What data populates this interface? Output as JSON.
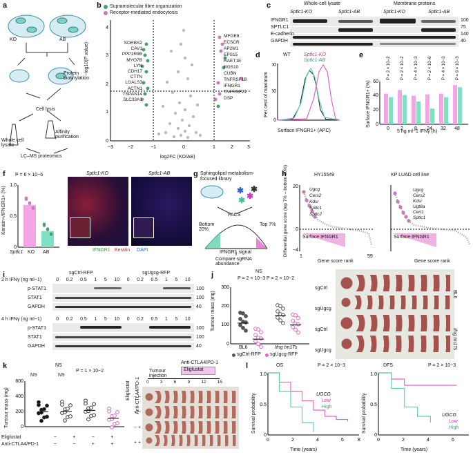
{
  "panels": {
    "a": {
      "label": "a",
      "ko": "KO",
      "ab": "AB",
      "protein_biotinylation": "Protein biotinylation",
      "cell_lysis": "Cell lysis",
      "whole_cell_lysate": "Whole cell lysate",
      "affinity_purification": "Affinity purification",
      "lcms": "LC–MS proteomics"
    },
    "b": {
      "label": "b",
      "legend_fibre": "Supramolecular fibre organization",
      "legend_endo": "Receptor-mediated endocytosis",
      "ylabel": "−log10(P value)",
      "xlabel": "log2FC (KO/AB)",
      "left_genes": [
        "SORBS2",
        "CAV1",
        "PPP1R9B",
        "MYO7B",
        "LYN",
        "CDH17",
        "CTTN",
        "LGALS3",
        "ACTN1",
        "TSPAN14",
        "SLC33A1"
      ],
      "right_genes": [
        "MFGE8",
        "ECSCR",
        "AP2M1",
        "EPS15",
        "RAET1E",
        "RGS10",
        "CUBN",
        "TNFRSF1B",
        "IFNGR1",
        "TNFRSF21",
        "DSP"
      ]
    },
    "c": {
      "label": "c",
      "hdr_wcl": "Whole-cell lysate",
      "hdr_mem": "Membrane proteins",
      "sub_ko": "Sptlc1-KO",
      "sub_ab": "Sptlc1-AB",
      "rows": [
        "IFNGR1",
        "SPTLC1",
        "E-cadherin",
        "GAPDH"
      ],
      "kda": [
        "100",
        "75",
        "140",
        "40"
      ]
    },
    "d": {
      "label": "d",
      "legend_wt": "WT",
      "legend_ko": "Sptlc1-KO",
      "legend_ab": "Sptlc1-AB",
      "ylabel": "Per cent of maximum",
      "xlabel": "Surface IFNGR1+ (APC)"
    },
    "e": {
      "label": "e",
      "ylabel": "Surface IFNGR1+ (%)",
      "xlabel": "5 ng ml−1 IFNγ (h)",
      "pvals": [
        "P = 2 × 10−2",
        "P = 2 × 10−2",
        "P = 4 × 10−3",
        "P = 2 × 10−6",
        "P = 4 × 10−3",
        "P = 9 × 10−3"
      ]
    },
    "f": {
      "label": "f",
      "p": "P = 6 × 10−6",
      "ylabel": "Keratin+/IFNGR1+ (%)",
      "xcat": [
        "KO",
        "AB"
      ],
      "xgene": "Sptlc1",
      "img1": "Sptlc1-KO",
      "img2": "Sptlc1-AB",
      "stain1": "IFNGR1",
      "stain2": "Keratin",
      "stain3": "DAPI"
    },
    "g": {
      "label": "g",
      "title": "Sphingolipid metabolism-focused library",
      "facs": "FACS",
      "bottom": "Bottom 20%",
      "top": "Top 7%",
      "signal": "IFNGR1 signal",
      "compare": "Compare sgRNA abundance"
    },
    "h": {
      "label": "h",
      "title1": "HY15549",
      "title2": "KP LUAD cell line",
      "ylabel": "Differential gene score (top 7% – bottom 20%)",
      "xlabel": "Gene score rank",
      "surface": "Surface IFNGR1",
      "genes1": [
        "Ugcg",
        "Cers2",
        "Kdsr",
        "Sptlc1",
        "Sptlc2"
      ],
      "genes2": [
        "Ugcg",
        "Cers2",
        "Kdsr",
        "Ugt8a",
        "Cert1",
        "Sptlc1"
      ]
    },
    "i": {
      "label": "i",
      "sgctrl": "sgCtrl-RFP",
      "sgugcg": "sgUgcg-RFP",
      "doses": [
        "0",
        "0.2",
        "0.5",
        "1",
        "5",
        "10"
      ],
      "h2": "2 h IFNγ (ng ml−1)",
      "h4": "4 h IFNγ (ng ml−1)",
      "rows": [
        "p-STAT1",
        "STAT1",
        "GAPDH"
      ],
      "kda": [
        "100",
        "100",
        "40"
      ]
    },
    "j": {
      "label": "j",
      "ns": "NS",
      "p1": "P = 2 × 10−3",
      "p2": "P = 2 × 10−2",
      "ylabel": "Tumour mass (mg)",
      "g1": "BL6",
      "g2": "Ifng tm1Ts",
      "leg1": "sgCtrl-RFP",
      "leg2": "sgUgcg-RFP",
      "photo_rows": [
        "sgCtrl",
        "sgUgcg",
        "sgCtrl",
        "sgUgcg"
      ],
      "photo_r1": "BL6",
      "photo_r2": "Ifng tm1Ts"
    },
    "k": {
      "label": "k",
      "ylabel": "Tumour mass (mg)",
      "ns": "NS",
      "p": "P = 1 × 10−2",
      "eliglustat": "Eliglustat",
      "anti": "Anti-CTLA4/PD-1",
      "tumour_inj": "Tumour injection",
      "days": [
        "0",
        "3",
        "6",
        "9",
        "12",
        "15"
      ],
      "signs_elig": [
        "−",
        "+",
        "−",
        "+"
      ],
      "signs_anti": [
        "−",
        "−",
        "+",
        "+"
      ]
    },
    "l": {
      "label": "l",
      "os": "OS",
      "dfs": "DFS",
      "p_os": "P = 2 × 10−3",
      "p_dfs": "P = 2 × 10−3",
      "gene": "UGCG",
      "low": "Low",
      "high": "High",
      "ylabel": "Survival probability",
      "xlabel": "Time (years)"
    }
  },
  "colors": {
    "magenta": "#e066c8",
    "teal": "#5fd1b0",
    "pink_bar": "#f2a6e6",
    "teal_bar": "#7fe0c4",
    "green_dot": "#4a9e6b",
    "purple_dot": "#c77ab8"
  },
  "chart_data": [
    {
      "type": "bar",
      "panel": "e",
      "categories": [
        "0",
        "2",
        "8",
        "24",
        "32",
        "48"
      ],
      "series": [
        {
          "values": [
            43,
            48,
            40,
            42,
            43,
            55
          ]
        },
        {
          "values": [
            38,
            41,
            32,
            22,
            38,
            52
          ]
        }
      ],
      "ylabel": "Surface IFNGR1+ (%)",
      "xlabel": "5 ng ml−1 IFNγ (h)",
      "ylim": [
        0,
        60
      ]
    },
    {
      "type": "bar",
      "panel": "f",
      "categories": [
        "KO",
        "AB"
      ],
      "values": [
        0.68,
        0.26
      ],
      "ylabel": "Keratin+/IFNGR1+ (%)",
      "ylim": [
        0,
        1
      ]
    },
    {
      "type": "scatter",
      "panel": "j",
      "categories": [
        "BL6",
        "Ifng tm1Ts"
      ],
      "series": [
        {
          "name": "sgCtrl-RFP",
          "values": [
            110,
            150
          ]
        },
        {
          "name": "sgUgcg-RFP",
          "values": [
            25,
            100
          ]
        }
      ],
      "ylabel": "Tumour mass (mg)",
      "ylim": [
        0,
        300
      ]
    },
    {
      "type": "scatter",
      "panel": "k",
      "categories": [
        "−/−",
        "+/−",
        "−/+",
        "+/+"
      ],
      "values": [
        195,
        200,
        215,
        110
      ],
      "ylabel": "Tumour mass (mg)",
      "ylim": [
        0,
        600
      ]
    },
    {
      "type": "line",
      "panel": "l-OS",
      "series": [
        {
          "name": "Low",
          "x": [
            0,
            1,
            2,
            3,
            4,
            5,
            6,
            7
          ],
          "values": [
            1,
            0.85,
            0.7,
            0.55,
            0.4,
            0.3,
            0.25,
            0.22
          ]
        },
        {
          "name": "High",
          "x": [
            0,
            1,
            2,
            3,
            4
          ],
          "values": [
            1,
            0.7,
            0.45,
            0.2,
            0.05
          ]
        }
      ],
      "xlabel": "Time (years)",
      "ylabel": "Survival probability",
      "ylim": [
        0,
        1
      ]
    },
    {
      "type": "line",
      "panel": "l-DFS",
      "series": [
        {
          "name": "Low",
          "x": [
            0,
            1,
            2,
            3,
            4,
            5,
            6
          ],
          "values": [
            1,
            0.9,
            0.8,
            0.8,
            0.8,
            0.8,
            0.8
          ]
        },
        {
          "name": "High",
          "x": [
            0,
            1,
            2,
            3,
            4
          ],
          "values": [
            1,
            0.75,
            0.45,
            0.3,
            0.2
          ]
        }
      ],
      "xlabel": "Time (years)",
      "ylabel": "Survival probability",
      "ylim": [
        0,
        1
      ]
    }
  ]
}
